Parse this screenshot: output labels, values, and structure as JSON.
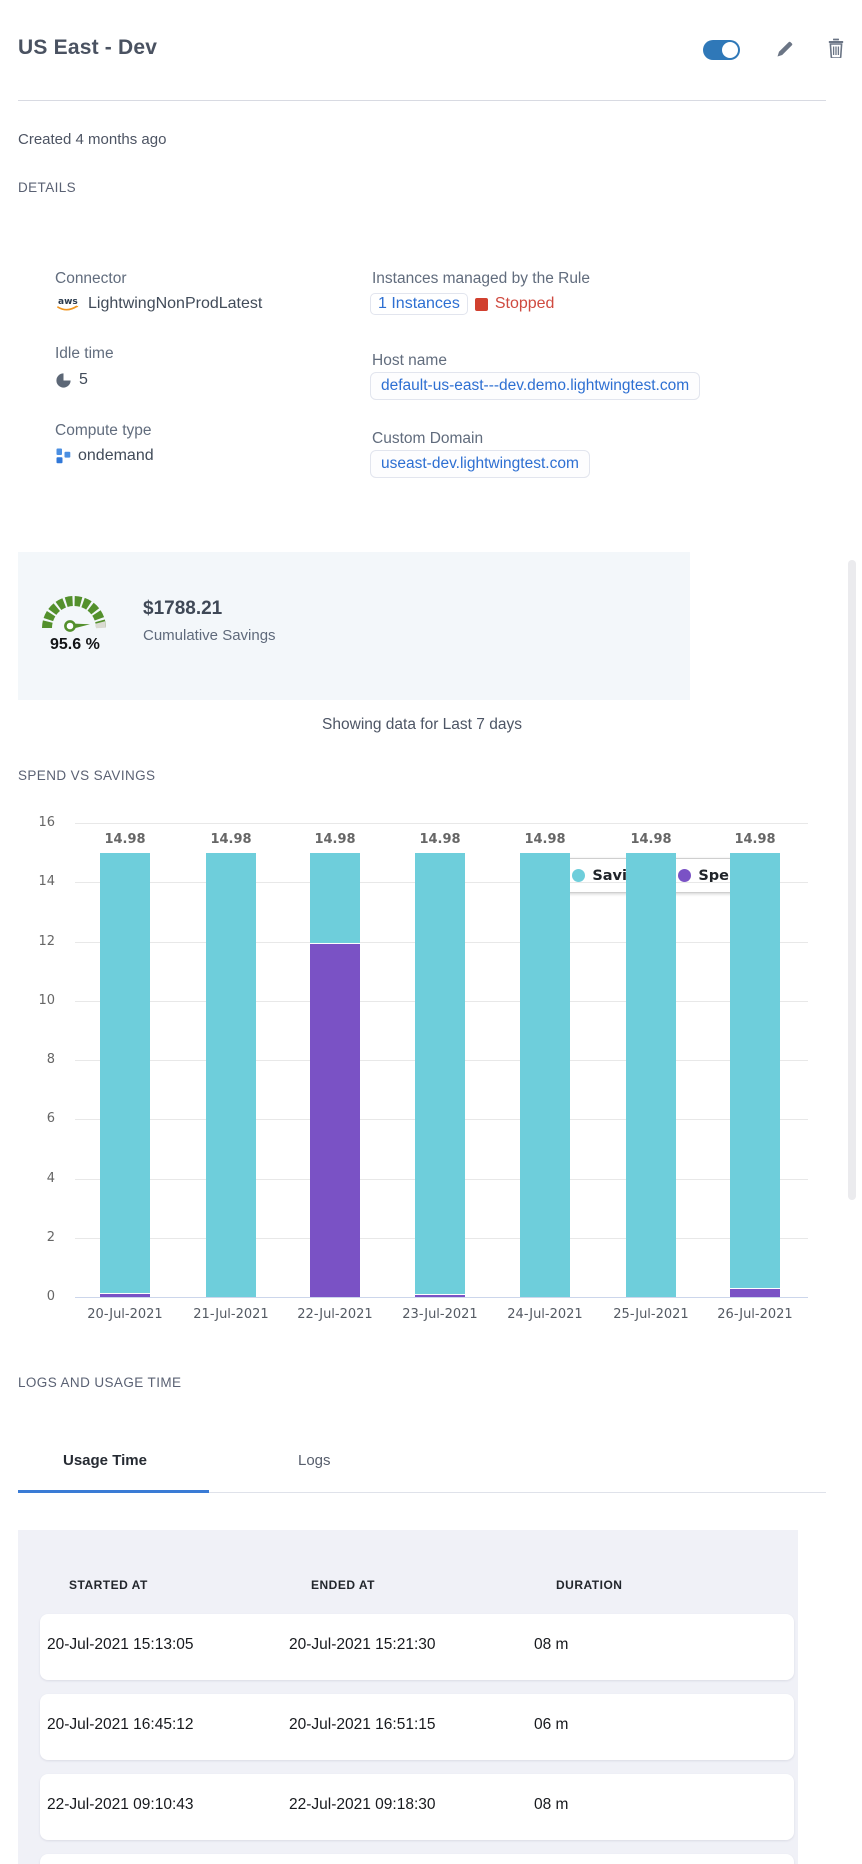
{
  "header": {
    "title": "US East - Dev",
    "toggle_state": "on"
  },
  "meta": {
    "created": "Created 4 months ago"
  },
  "section_headers": {
    "details": "DETAILS",
    "spend_vs_savings": "SPEND VS SAVINGS",
    "logs_and_usage": "LOGS AND USAGE TIME"
  },
  "details": {
    "connector": {
      "label": "Connector",
      "value": "LightwingNonProdLatest"
    },
    "instances": {
      "label": "Instances managed by the Rule",
      "link": "1 Instances",
      "status": "Stopped"
    },
    "idle_time": {
      "label": "Idle time",
      "value": "5"
    },
    "host_name": {
      "label": "Host name",
      "value": "default-us-east---dev.demo.lightwingtest.com"
    },
    "compute_type": {
      "label": "Compute type",
      "value": "ondemand"
    },
    "custom_domain": {
      "label": "Custom Domain",
      "value": "useast-dev.lightwingtest.com"
    }
  },
  "savings": {
    "percent": "95.6 %",
    "amount": "$1788.21",
    "caption": "Cumulative Savings"
  },
  "period_note": "Showing data for Last 7 days",
  "chart_data": {
    "type": "bar",
    "stacked": true,
    "title": "SPEND VS SAVINGS",
    "categories": [
      "20-Jul-2021",
      "21-Jul-2021",
      "22-Jul-2021",
      "23-Jul-2021",
      "24-Jul-2021",
      "25-Jul-2021",
      "26-Jul-2021"
    ],
    "series": [
      {
        "name": "Spend",
        "color": "#7a52c5",
        "values": [
          0.15,
          0,
          11.95,
          0.1,
          0,
          0,
          0.3
        ]
      },
      {
        "name": "Savings",
        "color": "#6ecedb",
        "values": [
          14.83,
          14.98,
          3.03,
          14.88,
          14.98,
          14.98,
          14.68
        ]
      }
    ],
    "bar_total_labels": [
      "14.98",
      "14.98",
      "14.98",
      "14.98",
      "14.98",
      "14.98",
      "14.98"
    ],
    "ylim": [
      0,
      16
    ],
    "ytick_step": 2,
    "grid": true,
    "legend_position": "top-right"
  },
  "tabs": {
    "usage_time": "Usage Time",
    "logs": "Logs",
    "active": "Usage Time"
  },
  "usage_table": {
    "columns": [
      "STARTED AT",
      "ENDED AT",
      "DURATION"
    ],
    "rows": [
      [
        "20-Jul-2021 15:13:05",
        "20-Jul-2021 15:21:30",
        "08 m"
      ],
      [
        "20-Jul-2021 16:45:12",
        "20-Jul-2021 16:51:15",
        "06 m"
      ],
      [
        "22-Jul-2021 09:10:43",
        "22-Jul-2021 09:18:30",
        "08 m"
      ]
    ],
    "partial_fourth_row": true
  },
  "colors": {
    "toggle_blue": "#2f78b8",
    "link_blue": "#2d6fd2",
    "status_red": "#d1402f",
    "gauge_green": "#53902c",
    "savings_teal": "#6ecedb",
    "spend_purple": "#7a52c5",
    "savings_panel_bg": "#f3f7fa",
    "table_panel_bg": "#f0f1f7",
    "tab_accent": "#3a7bd5"
  }
}
